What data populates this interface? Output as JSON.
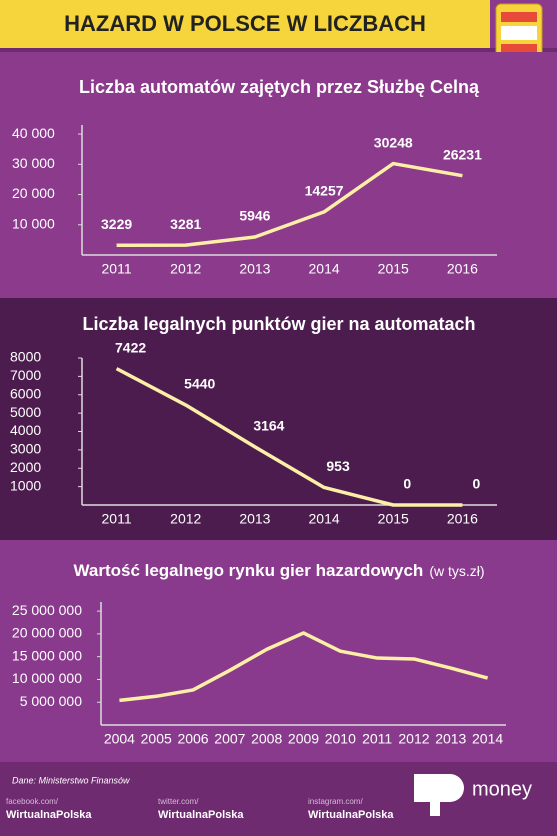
{
  "title": "HAZARD W POLSCE W LICZBACH",
  "chart_data": [
    {
      "type": "line",
      "title": "Liczba automatów zajętych przez Służbę Celną",
      "categories": [
        "2011",
        "2012",
        "2013",
        "2014",
        "2015",
        "2016"
      ],
      "series": [
        {
          "color": "#fdf0a6",
          "values": [
            3229,
            3281,
            5946,
            14257,
            30248,
            26231
          ]
        }
      ],
      "ylim": [
        0,
        43000
      ],
      "yticks": [
        {
          "value": 10000,
          "label": "10 000"
        },
        {
          "value": 20000,
          "label": "20 000"
        },
        {
          "value": 30000,
          "label": "30 000"
        },
        {
          "value": 40000,
          "label": "40 000"
        }
      ]
    },
    {
      "type": "line",
      "title": "Liczba legalnych punktów gier na automatach",
      "categories": [
        "2011",
        "2012",
        "2013",
        "2014",
        "2015",
        "2016"
      ],
      "series": [
        {
          "color": "#fdf0a6",
          "values": [
            7422,
            5440,
            3164,
            953,
            0,
            0
          ]
        }
      ],
      "ylim": [
        0,
        8000
      ],
      "yticks": [
        1000,
        2000,
        3000,
        4000,
        5000,
        6000,
        7000,
        8000
      ]
    },
    {
      "type": "line",
      "title": "Wartość legalnego rynku gier hazardowych",
      "subtitle": "(w tys.zł)",
      "categories": [
        "2004",
        "2005",
        "2006",
        "2007",
        "2008",
        "2009",
        "2010",
        "2011",
        "2012",
        "2013",
        "2014"
      ],
      "series": [
        {
          "color": "#fdf0a6",
          "values": [
            5400000,
            6300000,
            7700000,
            12000000,
            16600000,
            20200000,
            16200000,
            14700000,
            14500000,
            12500000,
            10300000
          ]
        }
      ],
      "ylim": [
        0,
        27000000
      ],
      "yticks": [
        {
          "value": 5000000,
          "label": "5 000 000"
        },
        {
          "value": 10000000,
          "label": "10 000 000"
        },
        {
          "value": 15000000,
          "label": "15 000 000"
        },
        {
          "value": 20000000,
          "label": "20 000 000"
        },
        {
          "value": 25000000,
          "label": "25 000 000"
        }
      ]
    }
  ],
  "footer": {
    "source": "Dane: Ministerstwo Finansów",
    "facebook_prefix": "facebook.com/",
    "facebook": "WirtualnaPolska",
    "twitter_prefix": "twitter.com/",
    "twitter": "WirtualnaPolska",
    "instagram_prefix": "instagram.com/",
    "instagram": "WirtualnaPolska",
    "brand": "money"
  }
}
